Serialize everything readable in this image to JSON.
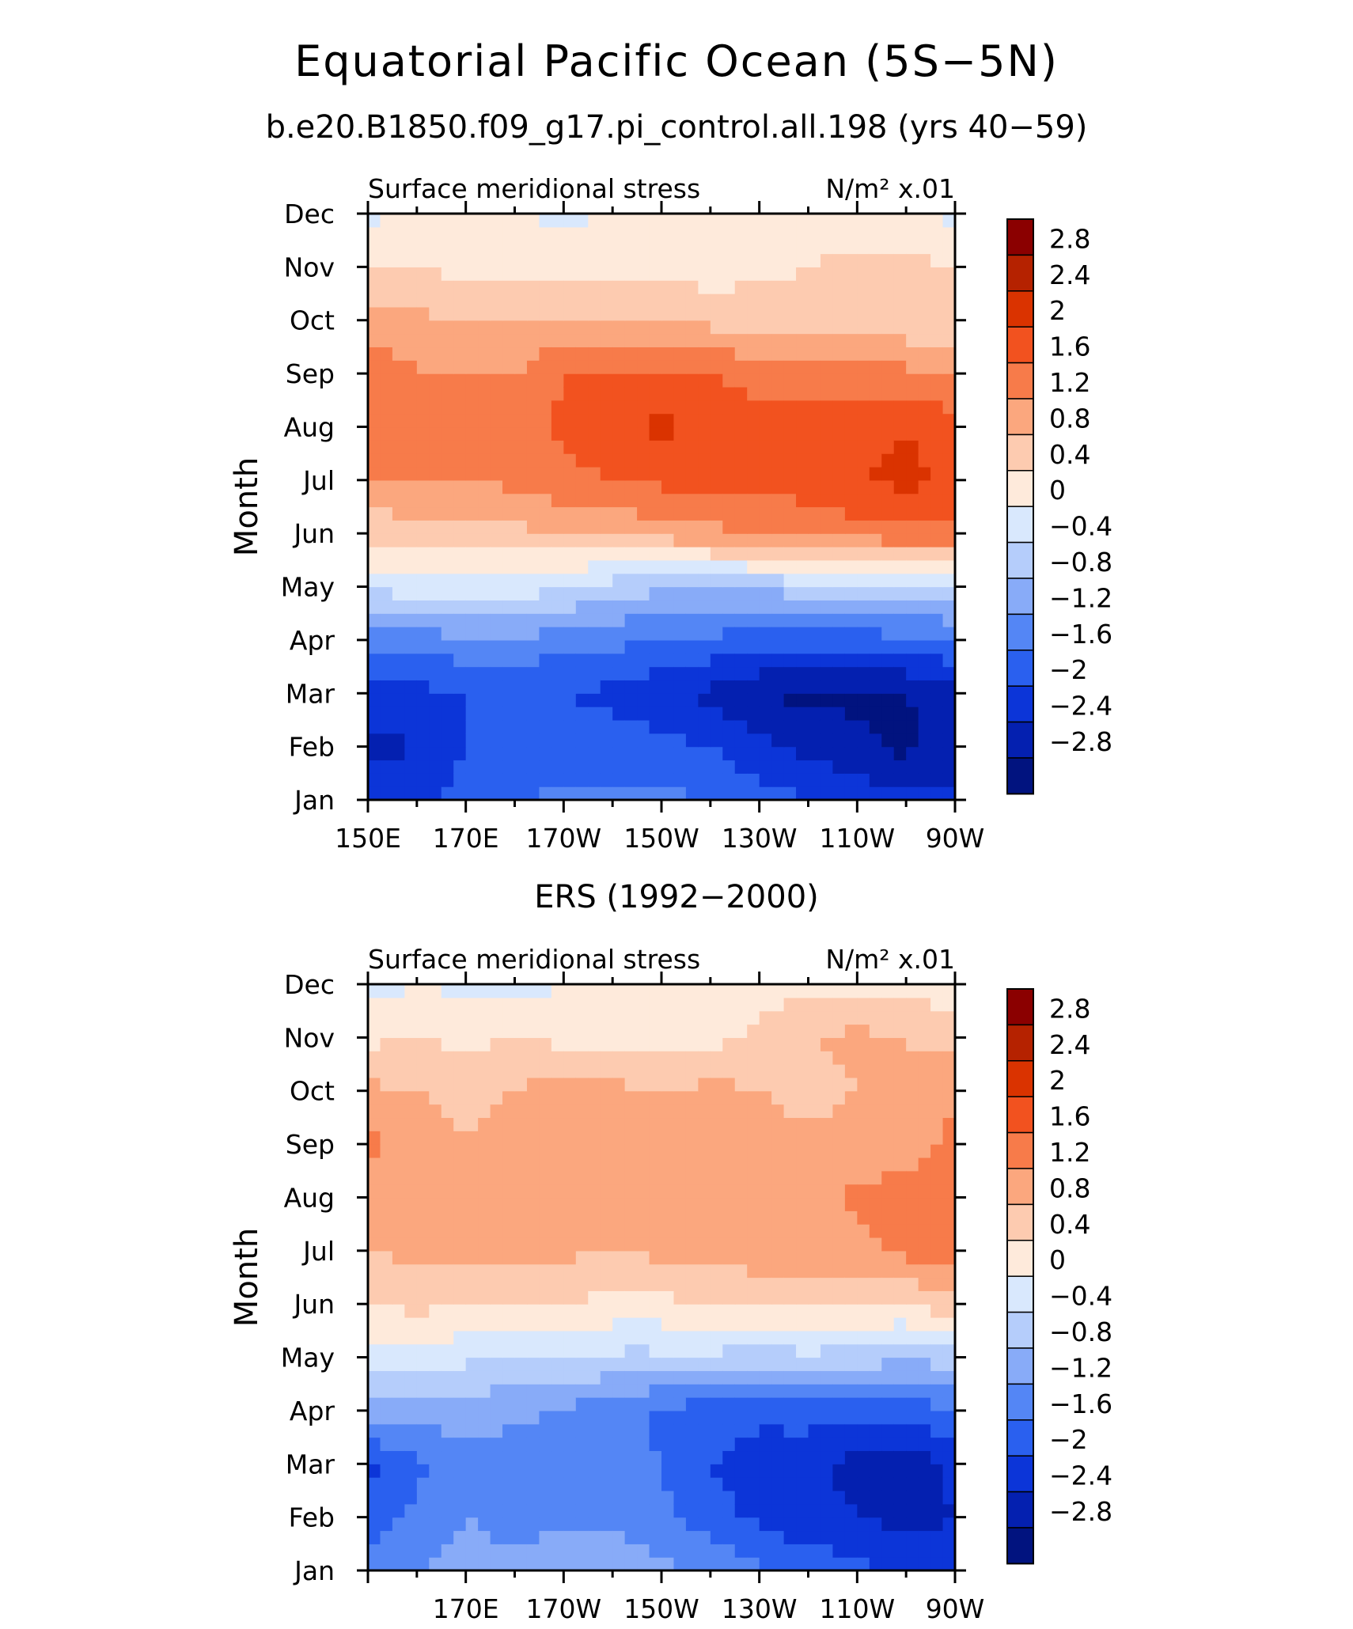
{
  "title": "Equatorial Pacific Ocean (5S−5N)",
  "panel_subtitles": [
    "b.e20.B1850.f09_g17.pi_control.all.198 (yrs 40−59)",
    "ERS (1992−2000)"
  ],
  "colorbar": {
    "labels": [
      "2.8",
      "2.4",
      "2",
      "1.6",
      "1.2",
      "0.8",
      "0.4",
      "0",
      "−0.4",
      "−0.8",
      "−1.2",
      "−1.6",
      "−2",
      "−2.4",
      "−2.8"
    ],
    "colors": [
      "#8b0000",
      "#b52200",
      "#da3300",
      "#f2521f",
      "#f77b4a",
      "#fba77e",
      "#fdcbb0",
      "#feeadb",
      "#d9e8fd",
      "#b5cdfb",
      "#88abf8",
      "#5486f5",
      "#2a60ef",
      "#0c35d8",
      "#0420b0",
      "#01137f"
    ]
  },
  "chart_data": [
    {
      "type": "heatmap",
      "panel_title": "b.e20.B1850.f09_g17.pi_control.all.198 (yrs 40−59)",
      "left_label": "Surface meridional stress",
      "right_label": "N/m² x.01",
      "xlabel": "",
      "ylabel": "Month",
      "x_ticklabels": [
        "150E",
        "170E",
        "170W",
        "150W",
        "130W",
        "110W",
        "90W"
      ],
      "y_ticklabels": [
        "Jan",
        "Feb",
        "Mar",
        "Apr",
        "May",
        "Jun",
        "Jul",
        "Aug",
        "Sep",
        "Oct",
        "Nov",
        "Dec"
      ],
      "x": [
        150,
        160,
        170,
        180,
        190,
        200,
        210,
        220,
        230,
        240,
        250,
        260,
        270
      ],
      "y": [
        "Jan",
        "Feb",
        "Mar",
        "Apr",
        "May",
        "Jun",
        "Jul",
        "Aug",
        "Sep",
        "Oct",
        "Nov",
        "Dec"
      ],
      "z": [
        [
          -2.2,
          -2.1,
          -1.8,
          -1.6,
          -1.5,
          -1.5,
          -1.5,
          -1.6,
          -1.8,
          -2.0,
          -2.1,
          -2.3,
          -2.3
        ],
        [
          -2.5,
          -2.4,
          -2.0,
          -1.9,
          -1.8,
          -1.8,
          -1.9,
          -2.0,
          -2.3,
          -2.5,
          -2.7,
          -2.9,
          -2.6
        ],
        [
          -2.2,
          -2.1,
          -2.0,
          -2.0,
          -2.0,
          -2.1,
          -2.3,
          -2.5,
          -2.8,
          -2.9,
          -2.9,
          -2.8,
          -2.5
        ],
        [
          -1.4,
          -1.4,
          -1.3,
          -1.3,
          -1.4,
          -1.5,
          -1.6,
          -1.7,
          -1.8,
          -1.8,
          -1.8,
          -1.7,
          -1.6
        ],
        [
          -0.3,
          -0.2,
          -0.1,
          -0.1,
          -0.4,
          -0.6,
          -0.7,
          -0.8,
          -0.7,
          -0.6,
          -0.5,
          -0.5,
          -0.5
        ],
        [
          0.5,
          0.6,
          0.6,
          0.7,
          0.8,
          0.9,
          1.0,
          1.1,
          1.2,
          1.3,
          1.4,
          1.5,
          1.5
        ],
        [
          1.2,
          1.2,
          1.2,
          1.3,
          1.5,
          1.6,
          1.7,
          1.7,
          1.8,
          1.8,
          2.0,
          2.1,
          1.9
        ],
        [
          1.5,
          1.3,
          1.3,
          1.3,
          1.7,
          1.9,
          2.1,
          1.8,
          1.7,
          1.7,
          1.9,
          2.0,
          1.8
        ],
        [
          1.6,
          1.2,
          1.2,
          1.2,
          1.6,
          1.7,
          1.7,
          1.6,
          1.5,
          1.5,
          1.4,
          1.3,
          1.2
        ],
        [
          1.0,
          0.9,
          0.8,
          0.8,
          0.8,
          0.8,
          0.8,
          0.7,
          0.6,
          0.6,
          0.6,
          0.5,
          0.5
        ],
        [
          0.4,
          0.4,
          0.3,
          0.3,
          0.3,
          0.3,
          0.3,
          0.2,
          0.3,
          0.4,
          0.5,
          0.5,
          0.4
        ],
        [
          -0.1,
          0.2,
          0.1,
          0.0,
          -0.1,
          0.0,
          0.1,
          0.1,
          0.2,
          0.2,
          0.2,
          0.1,
          -0.1
        ]
      ],
      "levels": [
        -2.8,
        -2.4,
        -2.0,
        -1.6,
        -1.2,
        -0.8,
        -0.4,
        0,
        0.4,
        0.8,
        1.2,
        1.6,
        2.0,
        2.4,
        2.8
      ]
    },
    {
      "type": "heatmap",
      "panel_title": "ERS (1992−2000)",
      "left_label": "Surface meridional stress",
      "right_label": "N/m² x.01",
      "xlabel": "",
      "ylabel": "Month",
      "x_ticklabels": [
        "170E",
        "170W",
        "150W",
        "130W",
        "110W",
        "90W"
      ],
      "y_ticklabels": [
        "Jan",
        "Feb",
        "Mar",
        "Apr",
        "May",
        "Jun",
        "Jul",
        "Aug",
        "Sep",
        "Oct",
        "Nov",
        "Dec"
      ],
      "x": [
        150,
        160,
        170,
        180,
        190,
        200,
        210,
        220,
        230,
        240,
        250,
        260,
        270
      ],
      "y": [
        "Jan",
        "Feb",
        "Mar",
        "Apr",
        "May",
        "Jun",
        "Jul",
        "Aug",
        "Sep",
        "Oct",
        "Nov",
        "Dec"
      ],
      "z": [
        [
          -1.3,
          -1.2,
          -0.9,
          -1.0,
          -0.8,
          -0.9,
          -1.1,
          -1.3,
          -1.5,
          -1.7,
          -1.9,
          -2.2,
          -2.3
        ],
        [
          -1.9,
          -1.5,
          -1.2,
          -1.5,
          -1.3,
          -1.3,
          -1.5,
          -1.8,
          -2.1,
          -2.3,
          -2.4,
          -2.5,
          -2.4
        ],
        [
          -2.1,
          -1.7,
          -1.3,
          -1.4,
          -1.3,
          -1.3,
          -1.6,
          -2.0,
          -2.2,
          -2.3,
          -2.5,
          -2.6,
          -2.3
        ],
        [
          -1.0,
          -1.0,
          -1.0,
          -1.1,
          -1.3,
          -1.4,
          -1.7,
          -1.8,
          -1.9,
          -1.8,
          -1.9,
          -1.9,
          -1.6
        ],
        [
          -0.2,
          -0.1,
          -0.3,
          -0.4,
          -0.3,
          -0.5,
          -0.5,
          -0.5,
          -0.6,
          -0.5,
          -0.6,
          -0.7,
          -0.6
        ],
        [
          0.4,
          0.5,
          0.4,
          0.5,
          0.4,
          0.3,
          0.3,
          0.4,
          0.5,
          0.5,
          0.4,
          0.4,
          0.7
        ],
        [
          0.8,
          0.9,
          0.9,
          1.0,
          0.9,
          0.8,
          0.9,
          1.0,
          1.0,
          1.0,
          1.1,
          1.3,
          1.4
        ],
        [
          0.9,
          0.9,
          1.0,
          1.0,
          1.0,
          0.9,
          1.0,
          1.0,
          0.9,
          0.9,
          1.3,
          1.4,
          1.4
        ],
        [
          1.3,
          1.0,
          0.8,
          1.0,
          1.0,
          0.9,
          1.0,
          1.0,
          0.9,
          0.9,
          0.9,
          1.0,
          1.3
        ],
        [
          0.9,
          0.8,
          0.7,
          0.8,
          1.0,
          0.9,
          0.8,
          0.9,
          0.8,
          0.7,
          0.8,
          0.9,
          1.2
        ],
        [
          0.3,
          0.4,
          0.3,
          0.4,
          0.3,
          0.3,
          0.3,
          0.3,
          0.5,
          0.8,
          0.9,
          0.8,
          0.6
        ],
        [
          -0.2,
          0.0,
          -0.1,
          -0.2,
          0.0,
          0.1,
          0.1,
          0.1,
          0.2,
          0.3,
          0.3,
          0.3,
          0.1
        ]
      ],
      "levels": [
        -2.8,
        -2.4,
        -2.0,
        -1.6,
        -1.2,
        -0.8,
        -0.4,
        0,
        0.4,
        0.8,
        1.2,
        1.6,
        2.0,
        2.4,
        2.8
      ]
    }
  ]
}
